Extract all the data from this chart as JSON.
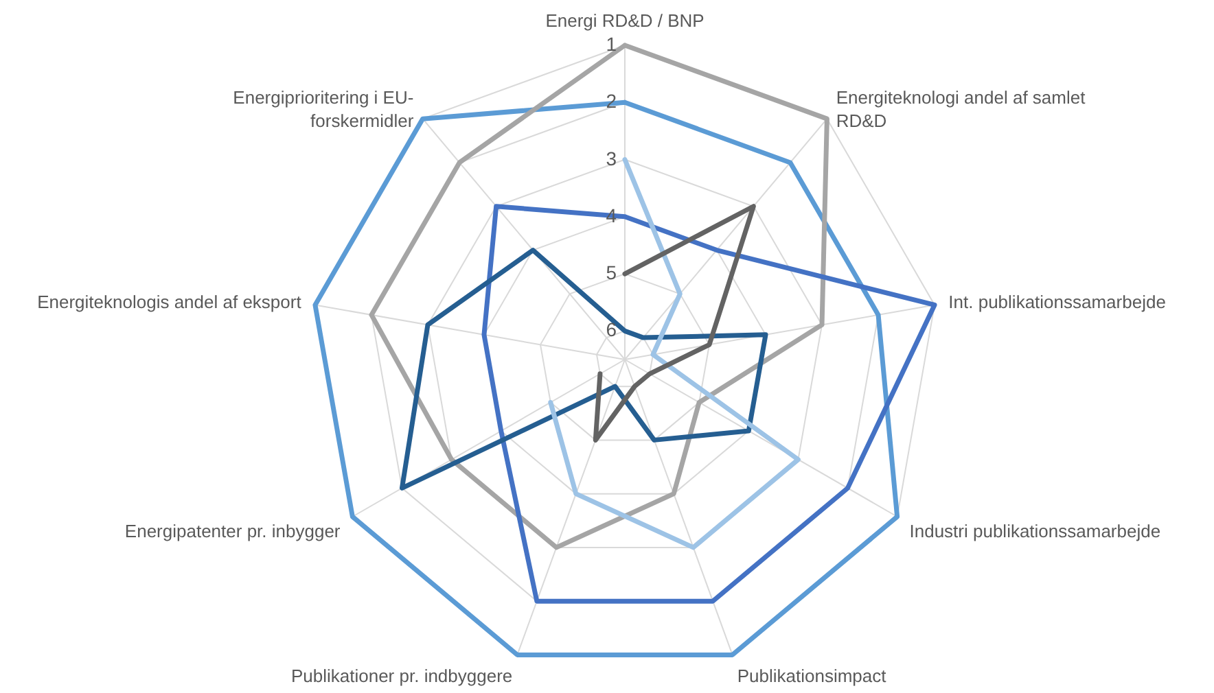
{
  "chart_data": {
    "type": "radar",
    "categories": [
      "Energi RD&D / BNP",
      "Energiteknologi andel af samlet\nRD&D",
      "Int. publikationssamarbejde",
      "Industri publikationssamarbejde",
      "Publikationsimpact",
      "Publikationer pr. indbyggere",
      "Energipatenter pr. inbygger",
      "Energiteknologis andel af eksport",
      "Energiprioritering i EU-\nforskermidler"
    ],
    "series": [
      {
        "color": "#5b9bd5",
        "values": [
          2,
          2,
          2,
          1,
          1,
          1,
          1,
          1,
          1
        ]
      },
      {
        "color": "#a5a5a5",
        "values": [
          1,
          1,
          3,
          5,
          4,
          3,
          3,
          2,
          2
        ]
      },
      {
        "color": "#4472c4",
        "values": [
          4,
          4,
          1,
          2,
          2,
          2,
          4,
          4,
          3
        ]
      },
      {
        "color": "#255e91",
        "values": [
          6,
          6,
          4,
          4,
          5,
          6,
          2,
          3,
          4
        ]
      },
      {
        "color": "#9dc3e6",
        "values": [
          3,
          5,
          6,
          3,
          3,
          4,
          5,
          null,
          null
        ]
      },
      {
        "color": "#636363",
        "values": [
          5,
          3,
          5,
          6,
          6,
          5,
          6,
          null,
          null
        ]
      }
    ],
    "ylim": [
      6.5,
      1
    ],
    "yticks": [
      1,
      2,
      3,
      4,
      5,
      6
    ],
    "grid": true
  }
}
